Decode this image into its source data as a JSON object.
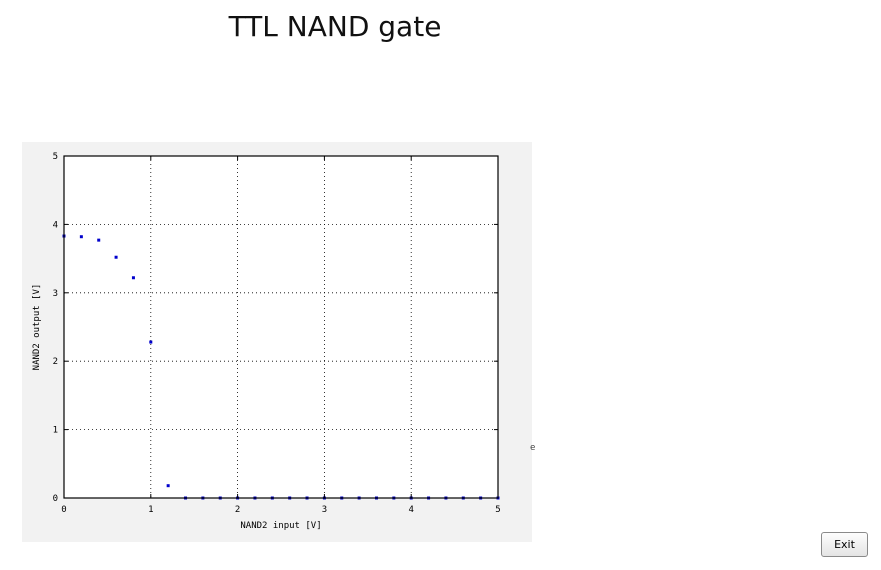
{
  "title": "TTL NAND gate",
  "exit_label": "Exit",
  "stray_text": "e",
  "colors": {
    "marker": "#0000cc",
    "panel": "#f2f2f2",
    "grid": "#000000"
  },
  "chart_data": {
    "type": "scatter",
    "title": "",
    "xlabel": "NAND2 input [V]",
    "ylabel": "NAND2 output [V]",
    "xlim": [
      0,
      5
    ],
    "ylim": [
      0,
      5
    ],
    "xticks": [
      0,
      1,
      2,
      3,
      4,
      5
    ],
    "yticks": [
      0,
      1,
      2,
      3,
      4,
      5
    ],
    "grid": true,
    "x": [
      0,
      0.2,
      0.4,
      0.6,
      0.8,
      1.0,
      1.2,
      1.4,
      1.6,
      1.8,
      2.0,
      2.2,
      2.4,
      2.6,
      2.8,
      3.0,
      3.2,
      3.4,
      3.6,
      3.8,
      4.0,
      4.2,
      4.4,
      4.6,
      4.8,
      5.0
    ],
    "y": [
      3.83,
      3.82,
      3.77,
      3.52,
      3.22,
      2.28,
      0.18,
      0,
      0,
      0,
      0,
      0,
      0,
      0,
      0,
      0,
      0,
      0,
      0,
      0,
      0,
      0,
      0,
      0,
      0,
      0
    ]
  }
}
